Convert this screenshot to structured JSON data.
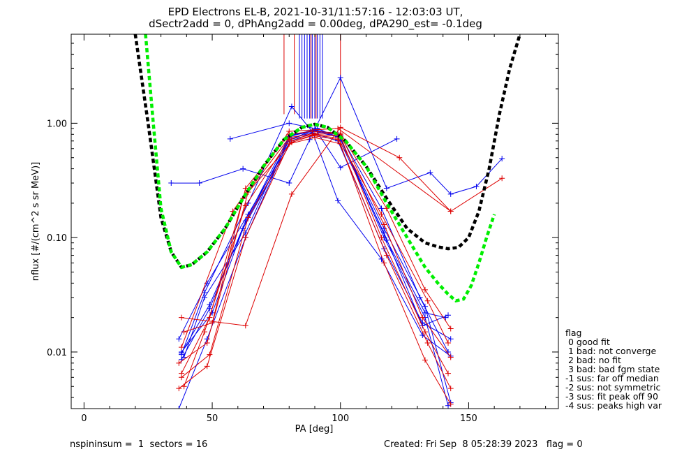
{
  "title_line1": "EPD Electrons EL-B, 2021-10-31/11:57:16 - 12:03:03 UT,",
  "title_line2": "dSectr2add = 0, dPhAng2add = 0.00deg, dPA290_est=  -0.1deg",
  "footer": {
    "left": "nspininsum =  1  sectors = 16",
    "right": "Created: Fri Sep  8 05:28:39 2023   flag = 0"
  },
  "legend": {
    "title": "flag",
    "items": [
      " 0 good fit",
      " 1 bad: not converge",
      " 2 bad: no fit",
      " 3 bad: bad fgm state",
      "-1 sus: far off median",
      "-2 sus: not symmetric",
      "-3 sus: fit peak off 90",
      "-4 sus: peaks high var"
    ]
  },
  "colors": {
    "blue": "#0000ee",
    "red": "#dd0000",
    "fit_black": "#000000",
    "fit_green": "#00ee00"
  },
  "chart_data": {
    "type": "line",
    "xlabel": "PA [deg]",
    "ylabel": "nflux [#/(cm^2 s sr MeV)]",
    "xlim": [
      -5,
      185
    ],
    "ylim": [
      0.0032,
      6.0
    ],
    "yscale": "log",
    "xticks": [
      0,
      50,
      100,
      150
    ],
    "yticks": [
      0.01,
      0.1,
      1.0
    ],
    "ytick_labels": [
      "0.01",
      "0.10",
      "1.00"
    ],
    "xtick_labels": [
      "0",
      "50",
      "100",
      "150"
    ],
    "series": [
      {
        "color": "blue",
        "x": [
          34,
          45,
          62,
          80,
          88,
          100,
          118,
          135,
          143,
          153,
          163
        ],
        "y": [
          0.3,
          0.3,
          0.4,
          0.3,
          0.72,
          2.5,
          0.27,
          0.37,
          0.24,
          0.28,
          0.49
        ]
      },
      {
        "color": "blue",
        "x": [
          57,
          80,
          90,
          100,
          122
        ],
        "y": [
          0.73,
          1.0,
          0.9,
          0.41,
          0.73
        ]
      },
      {
        "color": "blue",
        "x": [
          37,
          48,
          63,
          80,
          90,
          100,
          117,
          133,
          142
        ],
        "y": [
          0.0032,
          0.013,
          0.1,
          0.72,
          0.85,
          0.75,
          0.1,
          0.02,
          0.0034
        ]
      },
      {
        "color": "blue",
        "x": [
          38,
          47,
          64,
          81,
          89,
          99,
          116,
          132,
          143
        ],
        "y": [
          0.0095,
          0.033,
          0.2,
          1.4,
          0.85,
          0.21,
          0.065,
          0.014,
          0.0092
        ]
      },
      {
        "color": "blue",
        "x": [
          38,
          49,
          63,
          80,
          90,
          99,
          117,
          133,
          143
        ],
        "y": [
          0.0086,
          0.024,
          0.14,
          0.77,
          0.86,
          0.8,
          0.12,
          0.025,
          0.0036
        ]
      },
      {
        "color": "blue",
        "x": [
          37,
          48,
          64,
          81,
          90,
          100,
          116,
          131,
          142
        ],
        "y": [
          0.013,
          0.04,
          0.16,
          0.73,
          0.88,
          0.78,
          0.18,
          0.03,
          0.01
        ]
      },
      {
        "color": "blue",
        "x": [
          38,
          50,
          62,
          81,
          89,
          99,
          117,
          132,
          143
        ],
        "y": [
          0.01,
          0.022,
          0.12,
          0.7,
          0.82,
          0.7,
          0.08,
          0.018,
          0.013
        ]
      },
      {
        "color": "blue",
        "x": [
          39,
          47,
          63,
          80,
          91,
          100,
          118,
          133,
          141
        ],
        "y": [
          0.009,
          0.03,
          0.11,
          0.76,
          0.9,
          0.74,
          0.095,
          0.022,
          0.02
        ]
      },
      {
        "color": "blue",
        "x": [
          38,
          49,
          64,
          81,
          90,
          99,
          117,
          132,
          142
        ],
        "y": [
          0.0098,
          0.026,
          0.15,
          0.79,
          0.87,
          0.76,
          0.11,
          0.017,
          0.021
        ]
      },
      {
        "color": "red",
        "x": [
          37,
          48,
          63,
          80,
          90,
          100,
          117,
          133,
          143
        ],
        "y": [
          0.0048,
          0.0075,
          0.1,
          0.66,
          0.75,
          0.66,
          0.06,
          0.0085,
          0.0035
        ]
      },
      {
        "color": "red",
        "x": [
          38,
          49,
          64,
          81,
          89,
          99,
          118,
          134,
          143
        ],
        "y": [
          0.006,
          0.0095,
          0.15,
          0.7,
          0.78,
          0.72,
          0.07,
          0.012,
          0.0048
        ]
      },
      {
        "color": "red",
        "x": [
          39,
          47,
          63,
          80,
          90,
          100,
          116,
          133,
          142
        ],
        "y": [
          0.005,
          0.015,
          0.19,
          0.72,
          0.8,
          0.77,
          0.1,
          0.015,
          0.0065
        ]
      },
      {
        "color": "red",
        "x": [
          38,
          49,
          62,
          80,
          91,
          100,
          117,
          132,
          143
        ],
        "y": [
          0.0065,
          0.02,
          0.22,
          0.75,
          0.82,
          0.8,
          0.13,
          0.02,
          0.009
        ]
      },
      {
        "color": "red",
        "x": [
          37,
          48,
          64,
          81,
          90,
          99,
          116,
          134,
          142
        ],
        "y": [
          0.008,
          0.012,
          0.25,
          0.68,
          0.79,
          0.74,
          0.16,
          0.028,
          0.012
        ]
      },
      {
        "color": "red",
        "x": [
          39,
          50,
          63,
          80,
          89,
          100,
          118,
          133,
          143
        ],
        "y": [
          0.015,
          0.018,
          0.27,
          0.8,
          0.85,
          0.82,
          0.18,
          0.035,
          0.016
        ]
      },
      {
        "color": "red",
        "x": [
          38,
          63,
          81,
          100,
          123,
          143
        ],
        "y": [
          0.02,
          0.017,
          0.24,
          0.92,
          0.5,
          0.17
        ]
      },
      {
        "color": "red",
        "x": [
          38,
          58,
          80,
          99,
          143,
          163
        ],
        "y": [
          0.011,
          0.17,
          0.85,
          0.9,
          0.17,
          0.33
        ]
      }
    ],
    "fit_curves": [
      {
        "color": "fit_black",
        "style": "dashed",
        "x": [
          20,
          25,
          30,
          34,
          38,
          42,
          48,
          55,
          62,
          70,
          78,
          85,
          90,
          95,
          102,
          110,
          118,
          126,
          133,
          138,
          142,
          146,
          150,
          154,
          158,
          162,
          166,
          170
        ],
        "y": [
          6.0,
          1.0,
          0.15,
          0.075,
          0.055,
          0.058,
          0.075,
          0.12,
          0.22,
          0.42,
          0.72,
          0.92,
          0.98,
          0.92,
          0.7,
          0.42,
          0.22,
          0.12,
          0.09,
          0.083,
          0.08,
          0.082,
          0.1,
          0.17,
          0.4,
          1.2,
          3.0,
          6.0
        ]
      },
      {
        "color": "fit_green",
        "style": "dashed",
        "x": [
          24,
          27,
          30,
          34,
          38,
          42,
          48,
          55,
          62,
          70,
          78,
          85,
          90,
          95,
          102,
          110,
          118,
          126,
          133,
          138,
          142,
          145,
          148,
          151,
          154,
          157,
          160
        ],
        "y": [
          6.0,
          1.0,
          0.18,
          0.075,
          0.055,
          0.058,
          0.075,
          0.12,
          0.22,
          0.42,
          0.72,
          0.92,
          0.98,
          0.92,
          0.7,
          0.42,
          0.2,
          0.1,
          0.055,
          0.04,
          0.032,
          0.028,
          0.029,
          0.038,
          0.06,
          0.1,
          0.16
        ]
      }
    ],
    "vertical_lines": [
      {
        "color": "red",
        "x": 78,
        "y": [
          1.2,
          6.0
        ]
      },
      {
        "color": "red",
        "x": 82,
        "y": [
          1.2,
          6.0
        ]
      },
      {
        "color": "red",
        "x": 100,
        "y": [
          1.0,
          6.0
        ]
      },
      {
        "color": "blue",
        "x": 84,
        "y": [
          1.1,
          6.0
        ]
      },
      {
        "color": "blue",
        "x": 85,
        "y": [
          1.1,
          6.0
        ]
      },
      {
        "color": "blue",
        "x": 86,
        "y": [
          1.1,
          6.0
        ]
      },
      {
        "color": "blue",
        "x": 87,
        "y": [
          1.1,
          6.0
        ]
      },
      {
        "color": "blue",
        "x": 88,
        "y": [
          1.1,
          6.0
        ]
      },
      {
        "color": "blue",
        "x": 89,
        "y": [
          1.1,
          6.0
        ]
      },
      {
        "color": "blue",
        "x": 90,
        "y": [
          1.1,
          6.0
        ]
      },
      {
        "color": "blue",
        "x": 91,
        "y": [
          1.1,
          6.0
        ]
      },
      {
        "color": "blue",
        "x": 92,
        "y": [
          1.1,
          6.0
        ]
      },
      {
        "color": "blue",
        "x": 93,
        "y": [
          1.1,
          6.0
        ]
      },
      {
        "color": "red",
        "x": 88.5,
        "y": [
          1.1,
          6.0
        ]
      },
      {
        "color": "red",
        "x": 90.5,
        "y": [
          1.1,
          6.0
        ]
      }
    ]
  }
}
